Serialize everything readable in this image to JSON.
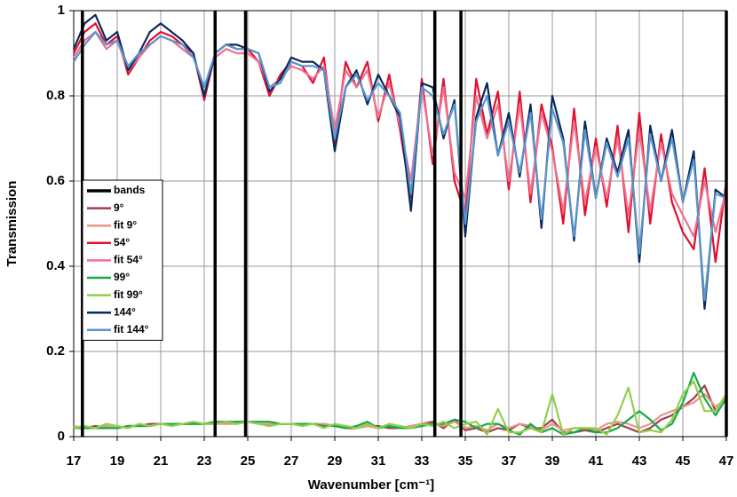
{
  "chart_data": {
    "type": "line",
    "xlabel": "Wavenumber [cm⁻¹]",
    "ylabel": "Transmission",
    "xlim": [
      17,
      47
    ],
    "ylim": [
      0,
      1
    ],
    "xticks": [
      17,
      19,
      21,
      23,
      25,
      27,
      29,
      31,
      33,
      35,
      37,
      39,
      41,
      43,
      45,
      47
    ],
    "yticks": [
      0,
      0.2,
      0.4,
      0.6,
      0.8,
      1
    ],
    "grid": true,
    "legend": "left",
    "bands": {
      "name": "bands",
      "color": "#000000",
      "x": [
        17.4,
        23.5,
        24.9,
        33.6,
        34.8,
        47
      ]
    },
    "x": [
      17,
      17.5,
      18,
      18.5,
      19,
      19.5,
      20,
      20.5,
      21,
      21.5,
      22,
      22.5,
      23,
      23.5,
      24,
      24.5,
      25,
      25.5,
      26,
      26.5,
      27,
      27.5,
      28,
      28.5,
      29,
      29.5,
      30,
      30.5,
      31,
      31.5,
      32,
      32.5,
      33,
      33.5,
      34,
      34.5,
      35,
      35.5,
      36,
      36.5,
      37,
      37.5,
      38,
      38.5,
      39,
      39.5,
      40,
      40.5,
      41,
      41.5,
      42,
      42.5,
      43,
      43.5,
      44,
      44.5,
      45,
      45.5,
      46,
      46.5,
      47
    ],
    "series": [
      {
        "name": "9°",
        "color": "#a0404a",
        "values": [
          0.02,
          0.02,
          0.025,
          0.02,
          0.02,
          0.025,
          0.025,
          0.03,
          0.03,
          0.03,
          0.03,
          0.03,
          0.03,
          0.035,
          0.03,
          0.035,
          0.035,
          0.03,
          0.03,
          0.03,
          0.03,
          0.03,
          0.03,
          0.03,
          0.025,
          0.02,
          0.02,
          0.025,
          0.025,
          0.02,
          0.02,
          0.025,
          0.03,
          0.035,
          0.02,
          0.04,
          0.015,
          0.02,
          0.01,
          0.02,
          0.015,
          0.03,
          0.02,
          0.02,
          0.04,
          0.01,
          0.01,
          0.015,
          0.01,
          0.02,
          0.03,
          0.02,
          0.01,
          0.02,
          0.04,
          0.05,
          0.07,
          0.09,
          0.12,
          0.06,
          0.1
        ]
      },
      {
        "name": "fit 9°",
        "color": "#e8968a",
        "values": [
          0.025,
          0.02,
          0.02,
          0.025,
          0.02,
          0.025,
          0.025,
          0.025,
          0.03,
          0.03,
          0.03,
          0.03,
          0.03,
          0.03,
          0.03,
          0.03,
          0.035,
          0.03,
          0.03,
          0.03,
          0.03,
          0.03,
          0.03,
          0.03,
          0.025,
          0.025,
          0.02,
          0.025,
          0.02,
          0.025,
          0.02,
          0.025,
          0.03,
          0.03,
          0.025,
          0.035,
          0.02,
          0.025,
          0.015,
          0.03,
          0.02,
          0.03,
          0.025,
          0.015,
          0.03,
          0.015,
          0.02,
          0.02,
          0.015,
          0.03,
          0.035,
          0.03,
          0.02,
          0.03,
          0.05,
          0.06,
          0.07,
          0.08,
          0.1,
          0.07,
          0.09
        ]
      },
      {
        "name": "54°",
        "color": "#e0102f",
        "values": [
          0.9,
          0.95,
          0.97,
          0.92,
          0.94,
          0.85,
          0.89,
          0.93,
          0.95,
          0.94,
          0.92,
          0.9,
          0.79,
          0.9,
          0.92,
          0.91,
          0.91,
          0.88,
          0.8,
          0.85,
          0.88,
          0.87,
          0.83,
          0.89,
          0.69,
          0.88,
          0.82,
          0.88,
          0.74,
          0.85,
          0.72,
          0.56,
          0.84,
          0.64,
          0.84,
          0.6,
          0.52,
          0.84,
          0.71,
          0.81,
          0.58,
          0.81,
          0.55,
          0.78,
          0.68,
          0.5,
          0.77,
          0.52,
          0.7,
          0.54,
          0.73,
          0.48,
          0.76,
          0.5,
          0.71,
          0.55,
          0.48,
          0.44,
          0.63,
          0.41,
          0.6
        ]
      },
      {
        "name": "fit 54°",
        "color": "#f07090",
        "values": [
          0.89,
          0.93,
          0.95,
          0.91,
          0.93,
          0.86,
          0.89,
          0.92,
          0.94,
          0.93,
          0.91,
          0.89,
          0.82,
          0.89,
          0.91,
          0.9,
          0.9,
          0.88,
          0.82,
          0.84,
          0.87,
          0.86,
          0.84,
          0.87,
          0.72,
          0.86,
          0.82,
          0.86,
          0.75,
          0.83,
          0.73,
          0.6,
          0.82,
          0.66,
          0.82,
          0.62,
          0.56,
          0.8,
          0.7,
          0.78,
          0.6,
          0.78,
          0.57,
          0.76,
          0.67,
          0.53,
          0.74,
          0.55,
          0.68,
          0.56,
          0.7,
          0.52,
          0.72,
          0.53,
          0.69,
          0.57,
          0.52,
          0.47,
          0.6,
          0.48,
          0.58
        ]
      },
      {
        "name": "99°",
        "color": "#18a84a",
        "values": [
          0.02,
          0.02,
          0.02,
          0.02,
          0.02,
          0.025,
          0.025,
          0.025,
          0.03,
          0.03,
          0.03,
          0.03,
          0.03,
          0.035,
          0.035,
          0.035,
          0.035,
          0.035,
          0.035,
          0.03,
          0.03,
          0.03,
          0.03,
          0.025,
          0.025,
          0.02,
          0.025,
          0.035,
          0.02,
          0.025,
          0.02,
          0.02,
          0.025,
          0.03,
          0.03,
          0.04,
          0.035,
          0.02,
          0.03,
          0.03,
          0.015,
          0.005,
          0.03,
          0.01,
          0.02,
          0.005,
          0.01,
          0.02,
          0.01,
          0.01,
          0.02,
          0.04,
          0.06,
          0.04,
          0.015,
          0.03,
          0.08,
          0.15,
          0.09,
          0.05,
          0.09
        ]
      },
      {
        "name": "fit 99°",
        "color": "#90d048",
        "values": [
          0.02,
          0.025,
          0.02,
          0.03,
          0.025,
          0.02,
          0.03,
          0.025,
          0.03,
          0.025,
          0.03,
          0.035,
          0.03,
          0.03,
          0.035,
          0.03,
          0.035,
          0.03,
          0.025,
          0.03,
          0.03,
          0.025,
          0.03,
          0.02,
          0.03,
          0.025,
          0.02,
          0.03,
          0.02,
          0.03,
          0.025,
          0.02,
          0.03,
          0.025,
          0.035,
          0.02,
          0.03,
          0.035,
          0.005,
          0.065,
          0.01,
          0.01,
          0.02,
          0.01,
          0.1,
          0.005,
          0.02,
          0.02,
          0.02,
          0.005,
          0.05,
          0.115,
          0.01,
          0.015,
          0.01,
          0.04,
          0.1,
          0.13,
          0.06,
          0.06,
          0.1
        ]
      },
      {
        "name": "144°",
        "color": "#0a2a5a",
        "values": [
          0.91,
          0.97,
          0.99,
          0.93,
          0.95,
          0.86,
          0.9,
          0.95,
          0.97,
          0.95,
          0.93,
          0.9,
          0.8,
          0.9,
          0.92,
          0.92,
          0.91,
          0.9,
          0.81,
          0.84,
          0.89,
          0.88,
          0.88,
          0.86,
          0.67,
          0.82,
          0.86,
          0.78,
          0.85,
          0.8,
          0.75,
          0.53,
          0.83,
          0.82,
          0.7,
          0.79,
          0.47,
          0.75,
          0.83,
          0.66,
          0.76,
          0.61,
          0.78,
          0.49,
          0.8,
          0.7,
          0.46,
          0.74,
          0.56,
          0.7,
          0.62,
          0.72,
          0.41,
          0.73,
          0.6,
          0.72,
          0.55,
          0.67,
          0.3,
          0.58,
          0.56
        ]
      },
      {
        "name": "fit 144°",
        "color": "#5b95cf",
        "values": [
          0.88,
          0.92,
          0.95,
          0.92,
          0.93,
          0.87,
          0.9,
          0.92,
          0.94,
          0.93,
          0.92,
          0.89,
          0.82,
          0.9,
          0.92,
          0.91,
          0.91,
          0.9,
          0.82,
          0.83,
          0.88,
          0.87,
          0.87,
          0.86,
          0.7,
          0.82,
          0.85,
          0.79,
          0.83,
          0.8,
          0.76,
          0.57,
          0.82,
          0.8,
          0.71,
          0.78,
          0.5,
          0.74,
          0.8,
          0.66,
          0.74,
          0.62,
          0.76,
          0.51,
          0.77,
          0.69,
          0.47,
          0.72,
          0.56,
          0.69,
          0.61,
          0.7,
          0.43,
          0.71,
          0.6,
          0.7,
          0.55,
          0.65,
          0.32,
          0.57,
          0.56
        ]
      }
    ]
  }
}
